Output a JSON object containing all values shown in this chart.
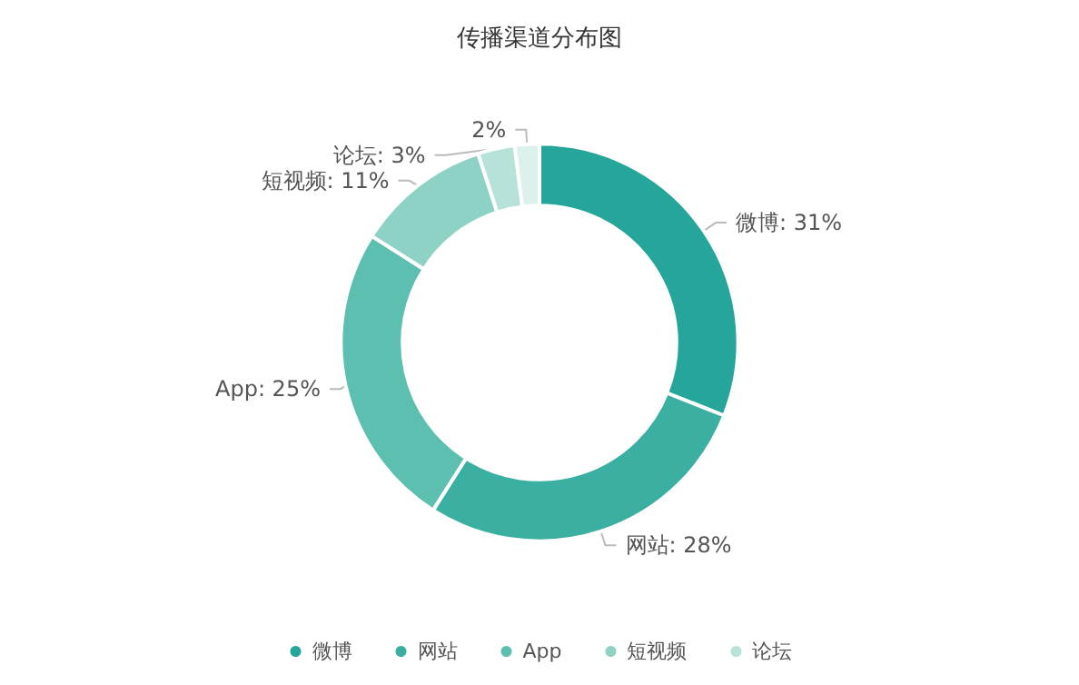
{
  "chart_data": {
    "type": "donut",
    "title": "传播渠道分布图",
    "categories": [
      "微博",
      "网站",
      "App",
      "短视频",
      "论坛",
      null
    ],
    "values": [
      31,
      28,
      25,
      11,
      3,
      2
    ],
    "value_labels": [
      "微博: 31%",
      "网站: 28%",
      "App: 25%",
      "短视频: 11%",
      "论坛: 3%",
      "2%"
    ],
    "colors": [
      "#26a69a",
      "#3bb0a2",
      "#5cbfb0",
      "#8ed2c6",
      "#b6e2da",
      "#dcf1ed"
    ],
    "legend": "bottom"
  }
}
